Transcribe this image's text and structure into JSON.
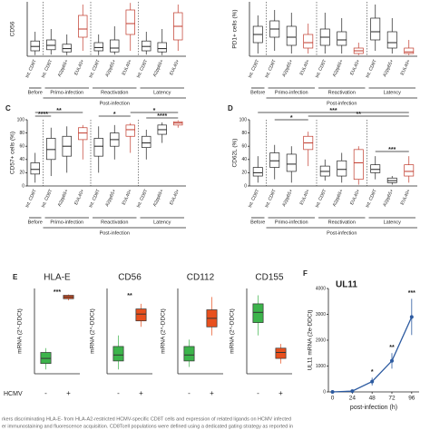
{
  "chart_data": [
    {
      "type": "box",
      "ylabel": "CD56",
      "ylim": [
        0,
        100
      ],
      "categories": [
        "Int. CD8T",
        "Int. CD8T",
        "A2pp65+",
        "EUL40+",
        "Int. CD8T",
        "A2pp65+",
        "EUL40+",
        "Int. CD8T",
        "A2pp65+",
        "EUL40+"
      ],
      "colors": [
        "#222222",
        "#222222",
        "#222222",
        "#c0392b",
        "#222222",
        "#222222",
        "#c0392b",
        "#222222",
        "#222222",
        "#c0392b"
      ],
      "boxes": [
        {
          "min": 2,
          "q1": 10,
          "median": 18,
          "q3": 28,
          "max": 45
        },
        {
          "min": 3,
          "q1": 12,
          "median": 20,
          "q3": 30,
          "max": 50
        },
        {
          "min": 2,
          "q1": 8,
          "median": 14,
          "q3": 22,
          "max": 40
        },
        {
          "min": 10,
          "q1": 35,
          "median": 50,
          "q3": 75,
          "max": 95
        },
        {
          "min": 2,
          "q1": 10,
          "median": 16,
          "q3": 25,
          "max": 40
        },
        {
          "min": 3,
          "q1": 8,
          "median": 15,
          "q3": 30,
          "max": 55
        },
        {
          "min": 10,
          "q1": 40,
          "median": 60,
          "q3": 85,
          "max": 98
        },
        {
          "min": 3,
          "q1": 10,
          "median": 18,
          "q3": 28,
          "max": 45
        },
        {
          "min": 2,
          "q1": 8,
          "median": 14,
          "q3": 25,
          "max": 50
        },
        {
          "min": 10,
          "q1": 30,
          "median": 55,
          "q3": 80,
          "max": 95
        }
      ],
      "groups": [
        "Before",
        "Primo-infection",
        "Reactivation",
        "Latency"
      ],
      "group_header": "Post-infection"
    },
    {
      "type": "box",
      "ylabel": "PD1+ cells (%)",
      "ylim": [
        0,
        100
      ],
      "categories": [
        "Int. CD8T",
        "Int. CD8T",
        "A2pp65+",
        "EUL40+",
        "Int. CD8T",
        "A2pp65+",
        "EUL40+",
        "Int. CD8T",
        "A2pp65+",
        "EUL40+"
      ],
      "colors": [
        "#222222",
        "#222222",
        "#222222",
        "#c0392b",
        "#222222",
        "#222222",
        "#c0392b",
        "#222222",
        "#222222",
        "#c0392b"
      ],
      "boxes": [
        {
          "min": 5,
          "q1": 25,
          "median": 40,
          "q3": 55,
          "max": 75
        },
        {
          "min": 10,
          "q1": 35,
          "median": 50,
          "q3": 65,
          "max": 85
        },
        {
          "min": 5,
          "q1": 20,
          "median": 35,
          "q3": 55,
          "max": 80
        },
        {
          "min": 5,
          "q1": 15,
          "median": 25,
          "q3": 40,
          "max": 60
        },
        {
          "min": 5,
          "q1": 20,
          "median": 35,
          "q3": 50,
          "max": 80
        },
        {
          "min": 5,
          "q1": 20,
          "median": 30,
          "q3": 45,
          "max": 70
        },
        {
          "min": 2,
          "q1": 5,
          "median": 10,
          "q3": 15,
          "max": 25
        },
        {
          "min": 10,
          "q1": 30,
          "median": 45,
          "q3": 70,
          "max": 95
        },
        {
          "min": 5,
          "q1": 15,
          "median": 25,
          "q3": 45,
          "max": 70
        },
        {
          "min": 2,
          "q1": 5,
          "median": 8,
          "q3": 15,
          "max": 30
        }
      ],
      "groups": [
        "Before",
        "Primo-infection",
        "Reactivation",
        "Latency"
      ],
      "group_header": "Post-infection"
    },
    {
      "type": "box",
      "letter": "C",
      "ylabel": "CD57+ cells (%)",
      "ylim": [
        0,
        100
      ],
      "yticks": [
        0,
        20,
        40,
        60,
        80,
        100
      ],
      "categories": [
        "Int. CD8T",
        "Int. CD8T",
        "A2pp65+",
        "EUL40+",
        "Int. CD8T",
        "A2pp65+",
        "EUL40+",
        "Int. CD8T",
        "A2pp65+",
        "EUL40+"
      ],
      "colors": [
        "#222222",
        "#222222",
        "#222222",
        "#c0392b",
        "#222222",
        "#222222",
        "#c0392b",
        "#222222",
        "#222222",
        "#c0392b"
      ],
      "boxes": [
        {
          "min": 5,
          "q1": 18,
          "median": 25,
          "q3": 35,
          "max": 50
        },
        {
          "min": 15,
          "q1": 40,
          "median": 55,
          "q3": 72,
          "max": 88
        },
        {
          "min": 20,
          "q1": 45,
          "median": 60,
          "q3": 75,
          "max": 90
        },
        {
          "min": 40,
          "q1": 70,
          "median": 80,
          "q3": 88,
          "max": 92
        },
        {
          "min": 20,
          "q1": 45,
          "median": 60,
          "q3": 72,
          "max": 90
        },
        {
          "min": 40,
          "q1": 60,
          "median": 70,
          "q3": 80,
          "max": 92
        },
        {
          "min": 50,
          "q1": 75,
          "median": 85,
          "q3": 92,
          "max": 95
        },
        {
          "min": 40,
          "q1": 58,
          "median": 65,
          "q3": 75,
          "max": 85
        },
        {
          "min": 65,
          "q1": 78,
          "median": 85,
          "q3": 92,
          "max": 96
        },
        {
          "min": 88,
          "q1": 92,
          "median": 95,
          "q3": 97,
          "max": 99
        }
      ],
      "groups": [
        "Before",
        "Primo-infection",
        "Reactivation",
        "Latency"
      ],
      "group_header": "Post-infection",
      "annotations": [
        "****",
        "**",
        "*",
        "*",
        "****"
      ]
    },
    {
      "type": "box",
      "letter": "D",
      "ylabel": "CD62L (%)",
      "ylim": [
        0,
        100
      ],
      "yticks": [
        0,
        20,
        40,
        60,
        80,
        100
      ],
      "categories": [
        "Int. CD8T",
        "Int. CD8T",
        "A2pp65+",
        "EUL40+",
        "Int. CD8T",
        "A2pp65+",
        "EUL40+",
        "Int. CD8T",
        "A2pp65+",
        "EUL40+"
      ],
      "colors": [
        "#222222",
        "#222222",
        "#222222",
        "#c0392b",
        "#222222",
        "#222222",
        "#c0392b",
        "#222222",
        "#222222",
        "#c0392b"
      ],
      "boxes": [
        {
          "min": 5,
          "q1": 15,
          "median": 20,
          "q3": 28,
          "max": 45
        },
        {
          "min": 10,
          "q1": 28,
          "median": 38,
          "q3": 50,
          "max": 62
        },
        {
          "min": 5,
          "q1": 22,
          "median": 33,
          "q3": 48,
          "max": 60
        },
        {
          "min": 30,
          "q1": 55,
          "median": 65,
          "q3": 75,
          "max": 82
        },
        {
          "min": 8,
          "q1": 15,
          "median": 22,
          "q3": 30,
          "max": 40
        },
        {
          "min": 5,
          "q1": 15,
          "median": 25,
          "q3": 38,
          "max": 50
        },
        {
          "min": 2,
          "q1": 10,
          "median": 35,
          "q3": 55,
          "max": 60
        },
        {
          "min": 10,
          "q1": 20,
          "median": 25,
          "q3": 32,
          "max": 45
        },
        {
          "min": 2,
          "q1": 5,
          "median": 8,
          "q3": 12,
          "max": 15
        },
        {
          "min": 5,
          "q1": 15,
          "median": 22,
          "q3": 32,
          "max": 45
        }
      ],
      "groups": [
        "Before",
        "Primo-infection",
        "Reactivation",
        "Latency"
      ],
      "group_header": "Post-infection",
      "annotations": [
        "*",
        "***",
        "**",
        "***"
      ]
    },
    {
      "type": "box",
      "letter": "E",
      "title": "HLA-E",
      "ylabel": "mRNA (2^-DDCt)",
      "xlabel": "HCMV",
      "ylim": [
        0,
        100
      ],
      "categories": [
        "-",
        "+"
      ],
      "colors": [
        "#3cb44b",
        "#e8501e"
      ],
      "boxes": [
        {
          "min": 5,
          "q1": 12,
          "median": 18,
          "q3": 25,
          "max": 30
        },
        {
          "min": 86,
          "q1": 88,
          "median": 90,
          "q3": 92,
          "max": 93
        }
      ],
      "annotations": [
        "***"
      ]
    },
    {
      "type": "box",
      "title": "CD56",
      "ylabel": "mRNA (2^-DDCt)",
      "ylim": [
        0,
        100
      ],
      "categories": [
        "-",
        "+"
      ],
      "colors": [
        "#3cb44b",
        "#e8501e"
      ],
      "boxes": [
        {
          "min": 5,
          "q1": 15,
          "median": 22,
          "q3": 32,
          "max": 45
        },
        {
          "min": 55,
          "q1": 62,
          "median": 70,
          "q3": 76,
          "max": 82
        }
      ],
      "annotations": [
        "**"
      ]
    },
    {
      "type": "box",
      "title": "CD112",
      "ylabel": "mRNA (2^-DDCt)",
      "ylim": [
        0,
        100
      ],
      "categories": [
        "-",
        "+"
      ],
      "colors": [
        "#3cb44b",
        "#e8501e"
      ],
      "boxes": [
        {
          "min": 8,
          "q1": 15,
          "median": 22,
          "q3": 32,
          "max": 40
        },
        {
          "min": 45,
          "q1": 55,
          "median": 65,
          "q3": 75,
          "max": 90
        }
      ]
    },
    {
      "type": "box",
      "title": "CD155",
      "ylabel": "mRNA (2^-DDCt)",
      "ylim": [
        0,
        100
      ],
      "categories": [
        "-",
        "+"
      ],
      "colors": [
        "#3cb44b",
        "#e8501e"
      ],
      "boxes": [
        {
          "min": 45,
          "q1": 60,
          "median": 72,
          "q3": 82,
          "max": 92
        },
        {
          "min": 12,
          "q1": 18,
          "median": 25,
          "q3": 30,
          "max": 35
        }
      ]
    },
    {
      "type": "line",
      "letter": "F",
      "title": "UL11",
      "ylabel": "UL11 mRNA (2e-DDCt)",
      "xlabel": "post-infection (h)",
      "color": "#2c5aa0",
      "x": [
        0,
        24,
        48,
        72,
        96
      ],
      "values": [
        0,
        30,
        400,
        1200,
        2900
      ],
      "errors": [
        0,
        20,
        150,
        300,
        700
      ],
      "xlim": [
        -5,
        105
      ],
      "xticks": [
        0,
        24,
        48,
        72,
        96
      ],
      "ylim": [
        0,
        4000
      ],
      "yticks": [
        0,
        1000,
        2000,
        3000,
        4000
      ],
      "annotations": [
        "*",
        "**",
        "***"
      ]
    }
  ],
  "caption": [
    "rkers discriminating HLA-E- from HLA-A2-restricted HCMV-specific CD8T cells and expression of related ligands on HCMV infected",
    "er immunostaining and fluorescence acquisition. CD8Tcell populations were defined using a dedicated gating strategy as reported in"
  ]
}
